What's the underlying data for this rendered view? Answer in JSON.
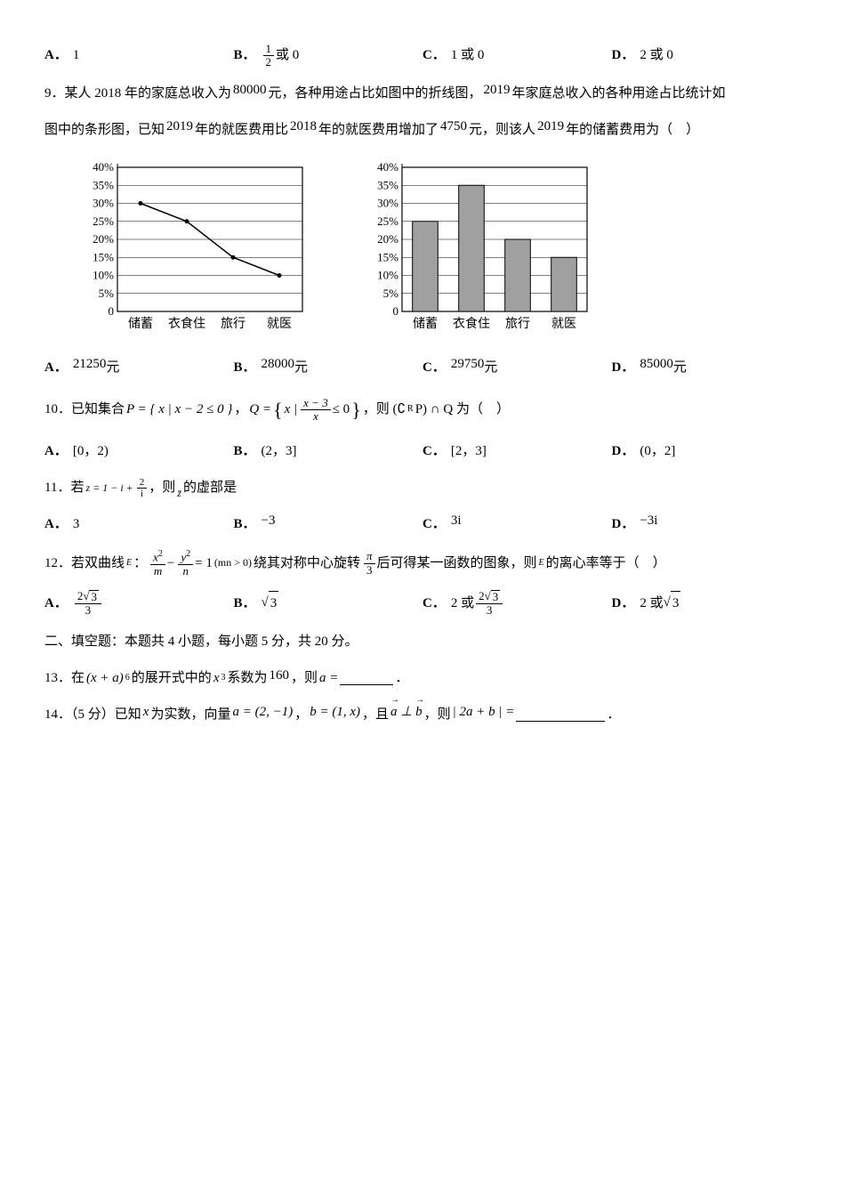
{
  "q8_opts": {
    "A": "1",
    "B_pre": "",
    "B_frac_num": "1",
    "B_frac_den": "2",
    "B_suf": " 或 0",
    "C": "1 或 0",
    "D": "2 或 0"
  },
  "q9": {
    "line1_a": "9．某人 2018 年的家庭总收入为",
    "val1": "80000",
    "line1_b": "元，各种用途占比如图中的折线图，",
    "val2": "2019",
    "line1_c": "年家庭总收入的各种用途占比统计如",
    "line2_a": "图中的条形图，已知",
    "val3": "2019",
    "line2_b": "年的就医费用比",
    "val4": "2018",
    "line2_c": "年的就医费用增加了",
    "val5": "4750",
    "line2_d": "元，则该人",
    "val6": "2019",
    "line2_e": "年的储蓄费用为（　）",
    "yticks": [
      "40%",
      "35%",
      "30%",
      "25%",
      "20%",
      "15%",
      "10%",
      "5%",
      "0"
    ],
    "cats": [
      "储蓄",
      "衣食住",
      "旅行",
      "就医"
    ],
    "line_chart": {
      "values": [
        30,
        25,
        15,
        10
      ],
      "ymax": 40,
      "grid_color": "#000000",
      "line_color": "#000000",
      "bg_color": "#ffffff",
      "fontsize": 13
    },
    "bar_chart": {
      "values": [
        25,
        35,
        20,
        15
      ],
      "ymax": 40,
      "grid_color": "#000000",
      "bar_color": "#a0a0a0",
      "bar_border": "#000000",
      "bg_color": "#ffffff",
      "fontsize": 13
    },
    "opts": {
      "A": "21250",
      "Au": "元",
      "B": "28000",
      "Bu": "元",
      "C": "29750",
      "Cu": "元",
      "D": "85000",
      "Du": "元"
    }
  },
  "q10": {
    "pre": "10．已知集合",
    "P_l": "P = { x | x − 2 ≤ 0 }",
    "comma": "，",
    "Q_l": "Q =",
    "Q_frac_num": "x − 3",
    "Q_frac_den": "x",
    "Q_tail": "≤ 0",
    "mid": "，则 (∁",
    "Rsub": "R",
    "mid2": "P) ∩ Q 为（　）",
    "opts": {
      "A": "[0，2)",
      "B": "(2，3]",
      "C": "[2，3]",
      "D": "(0，2]"
    }
  },
  "q11": {
    "pre": "11．若",
    "z_eq": "z = 1 − i +",
    "frac_num": "2",
    "frac_den": "i",
    "post": "，则",
    "zbar": "z̄",
    "post2": "的虚部是",
    "opts": {
      "A": "3",
      "B": "−3",
      "C": "3i",
      "D": "−3i"
    }
  },
  "q12": {
    "pre": "12．若双曲线",
    "Esub": "E",
    "colon": "：",
    "fx_num": "x",
    "fx_den": "m",
    "minus": " − ",
    "fy_num": "y",
    "fy_den": "n",
    "eq": " = 1",
    "cond": "(mn > 0)",
    "mid": "绕其对称中心旋转",
    "pi_num": "π",
    "pi_den": "3",
    "mid2": "后可得某一函数的图象，则",
    "Esub2": "E",
    "mid3": "的离心率等于（　）",
    "sq2": "2",
    "sq3": "3",
    "den3": "3",
    "sqrt3": "3",
    "or": "2 或",
    "sq3b": "3",
    "den3b": "3",
    "or2": "2 或",
    "sqrt3b": "3",
    "two": "2"
  },
  "sec2": "二、填空题：本题共 4 小题，每小题 5 分，共 20 分。",
  "q13": {
    "pre": "13．在",
    "base": "(x + a)",
    "exp": "6",
    "mid": "的展开式中的",
    "x": "x",
    "xexp": "3",
    "mid2": "系数为",
    "val": "160",
    "mid3": "，则",
    "aeq": "a ="
  },
  "q14": {
    "pre": "14．（5 分）已知",
    "x": "x",
    "mid": "为实数，向量",
    "a_eq": "a = (2, −1)",
    "comma": "，",
    "b_eq": "b = (1, x)",
    "comma2": "，且",
    "perp": "a ⊥ b",
    "comma3": "，则",
    "expr": "| 2a + b | ="
  },
  "labels": {
    "A": "A．",
    "B": "B．",
    "C": "C．",
    "D": "D．"
  }
}
